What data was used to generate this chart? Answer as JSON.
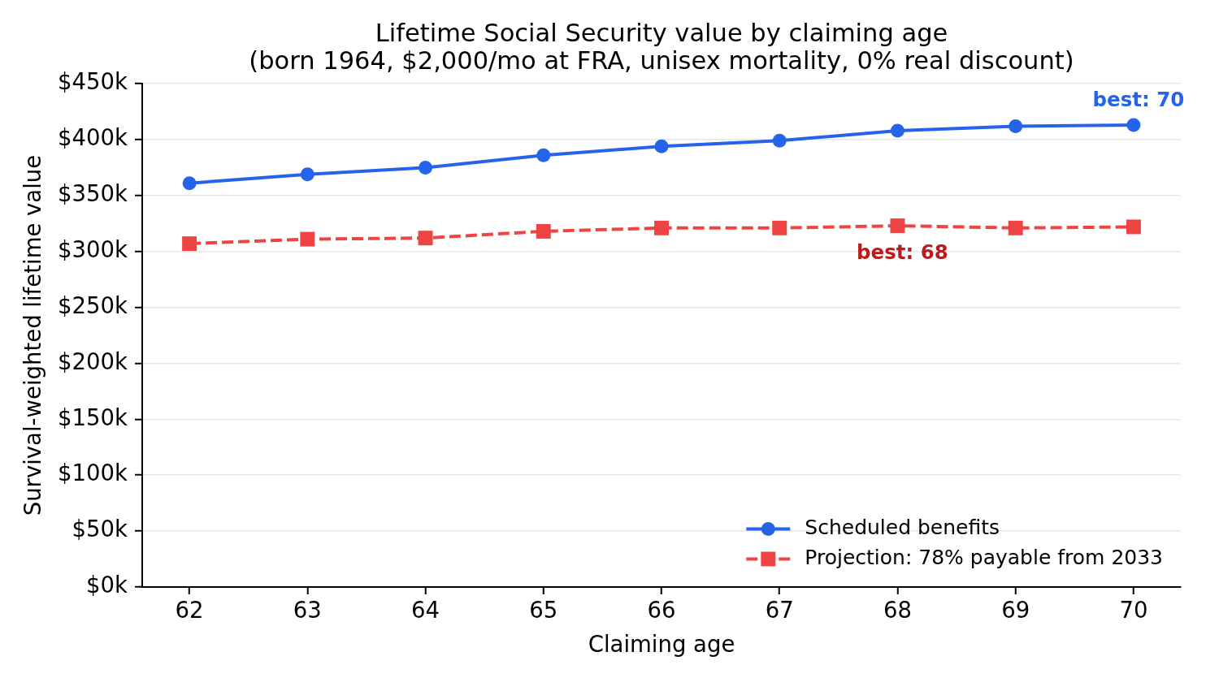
{
  "chart_data": {
    "type": "line",
    "title": "Lifetime Social Security value by claiming age",
    "subtitle": "(born 1964, $2,000/mo at FRA, unisex mortality, 0% real discount)",
    "xlabel": "Claiming age",
    "ylabel": "Survival-weighted lifetime value",
    "x": [
      62,
      63,
      64,
      65,
      66,
      67,
      68,
      69,
      70
    ],
    "series": [
      {
        "name": "Scheduled benefits",
        "color": "#2563eb",
        "marker": "circle",
        "line_style": "solid",
        "values": [
          361,
          369,
          375,
          386,
          394,
          399,
          408,
          412,
          413
        ]
      },
      {
        "name": "Projection: 78% payable from 2033",
        "color": "#ef4444",
        "marker": "square",
        "line_style": "dashed",
        "values": [
          307,
          311,
          312,
          318,
          321,
          321,
          323,
          321,
          322
        ]
      }
    ],
    "xlim": [
      61.6,
      70.4
    ],
    "xticks": [
      62,
      63,
      64,
      65,
      66,
      67,
      68,
      69,
      70
    ],
    "ylim": [
      0,
      450
    ],
    "yticks": [
      {
        "value": 0,
        "label": "$0k"
      },
      {
        "value": 50,
        "label": "$50k"
      },
      {
        "value": 100,
        "label": "$100k"
      },
      {
        "value": 150,
        "label": "$150k"
      },
      {
        "value": 200,
        "label": "$200k"
      },
      {
        "value": 250,
        "label": "$250k"
      },
      {
        "value": 300,
        "label": "$300k"
      },
      {
        "value": 350,
        "label": "$350k"
      },
      {
        "value": 400,
        "label": "$400k"
      },
      {
        "value": 450,
        "label": "$450k"
      }
    ],
    "grid": "y",
    "legend": "bottom right",
    "annotations": [
      {
        "text": "best: 70",
        "x": 70,
        "y": 413
      },
      {
        "text": "best: 68",
        "x": 68,
        "y": 323
      }
    ]
  }
}
